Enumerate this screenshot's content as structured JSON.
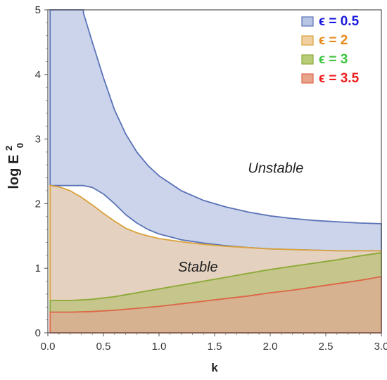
{
  "chart_data": {
    "type": "area",
    "xlabel": "k",
    "ylabel": "log E",
    "ylabel_sup": "2",
    "ylabel_sub": "0",
    "xlim": [
      0,
      3.0
    ],
    "ylim": [
      0,
      5
    ],
    "x_ticks": [
      0.0,
      0.5,
      1.0,
      1.5,
      2.0,
      2.5,
      3.0
    ],
    "x_tick_labels": [
      "0.0",
      "0.5",
      "1.0",
      "1.5",
      "2.0",
      "2.5",
      "3.0"
    ],
    "y_ticks": [
      0,
      1,
      2,
      3,
      4,
      5
    ],
    "y_tick_labels": [
      "0",
      "1",
      "2",
      "3",
      "4",
      "5"
    ],
    "legend_position": "top-right",
    "series": [
      {
        "name": "ϵ = 0.5",
        "stroke": "#5b73b8",
        "fill": "#b7c4e3",
        "x": [
          0.02,
          0.32,
          0.32,
          0.4,
          0.5,
          0.6,
          0.7,
          0.8,
          0.9,
          1.0,
          1.2,
          1.4,
          1.6,
          1.8,
          2.0,
          2.2,
          2.4,
          2.6,
          2.8,
          3.0
        ],
        "upper": [
          5.0,
          5.0,
          4.95,
          4.5,
          3.95,
          3.45,
          3.08,
          2.8,
          2.59,
          2.43,
          2.2,
          2.05,
          1.95,
          1.87,
          1.81,
          1.77,
          1.74,
          1.72,
          1.7,
          1.69
        ],
        "lower": [
          2.28,
          2.28,
          2.28,
          2.25,
          2.15,
          2.0,
          1.83,
          1.7,
          1.6,
          1.53,
          1.44,
          1.39,
          1.35,
          1.32,
          1.3,
          1.29,
          1.28,
          1.27,
          1.27,
          1.27
        ]
      },
      {
        "name": "ϵ = 2",
        "stroke": "#d9a23b",
        "fill": "#d9bfa6",
        "x": [
          0.02,
          0.1,
          0.2,
          0.3,
          0.4,
          0.5,
          0.6,
          0.7,
          0.8,
          0.9,
          1.0,
          1.2,
          1.4,
          1.6,
          1.8,
          2.0,
          2.2,
          2.4,
          2.6,
          2.8,
          3.0
        ],
        "upper": [
          2.28,
          2.26,
          2.2,
          2.1,
          1.98,
          1.85,
          1.73,
          1.62,
          1.55,
          1.5,
          1.46,
          1.41,
          1.37,
          1.34,
          1.32,
          1.3,
          1.29,
          1.28,
          1.27,
          1.27,
          1.27
        ],
        "lower": [
          0.5,
          0.5,
          0.5,
          0.51,
          0.52,
          0.54,
          0.56,
          0.59,
          0.62,
          0.65,
          0.68,
          0.74,
          0.8,
          0.86,
          0.92,
          0.98,
          1.03,
          1.08,
          1.13,
          1.19,
          1.24
        ]
      },
      {
        "name": "ϵ = 3",
        "stroke": "#8aab3a",
        "fill": "#b0b060",
        "x": [
          0.02,
          0.2,
          0.4,
          0.6,
          0.8,
          1.0,
          1.2,
          1.4,
          1.6,
          1.8,
          2.0,
          2.2,
          2.4,
          2.6,
          2.8,
          3.0
        ],
        "upper": [
          0.5,
          0.5,
          0.52,
          0.56,
          0.62,
          0.68,
          0.74,
          0.8,
          0.86,
          0.92,
          0.98,
          1.03,
          1.08,
          1.13,
          1.19,
          1.24
        ],
        "lower": [
          0.32,
          0.32,
          0.33,
          0.35,
          0.38,
          0.41,
          0.45,
          0.49,
          0.53,
          0.57,
          0.62,
          0.66,
          0.71,
          0.76,
          0.81,
          0.87
        ]
      },
      {
        "name": "ϵ = 3.5",
        "stroke": "#e0664a",
        "fill": "#c79467",
        "x": [
          0.02,
          0.2,
          0.4,
          0.6,
          0.8,
          1.0,
          1.2,
          1.4,
          1.6,
          1.8,
          2.0,
          2.2,
          2.4,
          2.6,
          2.8,
          3.0
        ],
        "upper": [
          0.32,
          0.32,
          0.33,
          0.35,
          0.38,
          0.41,
          0.45,
          0.49,
          0.53,
          0.57,
          0.62,
          0.66,
          0.71,
          0.76,
          0.81,
          0.87
        ],
        "lower": [
          0,
          0,
          0,
          0,
          0,
          0,
          0,
          0,
          0,
          0,
          0,
          0,
          0,
          0,
          0,
          0
        ]
      }
    ],
    "legend": [
      {
        "label": "ϵ = 0.5",
        "text_color": "#1a1adf",
        "fill": "#b7c4e3",
        "stroke": "#5b73b8"
      },
      {
        "label": "ϵ = 2",
        "text_color": "#e8891c",
        "fill": "#f0cfa0",
        "stroke": "#d9a23b"
      },
      {
        "label": "ϵ = 3",
        "text_color": "#3ec43e",
        "fill": "#b8cc78",
        "stroke": "#8aab3a"
      },
      {
        "label": "ϵ = 3.5",
        "text_color": "#ee1c1c",
        "fill": "#e8a48a",
        "stroke": "#e0664a"
      }
    ],
    "annotations": [
      {
        "text": "Unstable",
        "x": 2.05,
        "y": 2.48
      },
      {
        "text": "Stable",
        "x": 1.35,
        "y": 0.95
      }
    ]
  }
}
